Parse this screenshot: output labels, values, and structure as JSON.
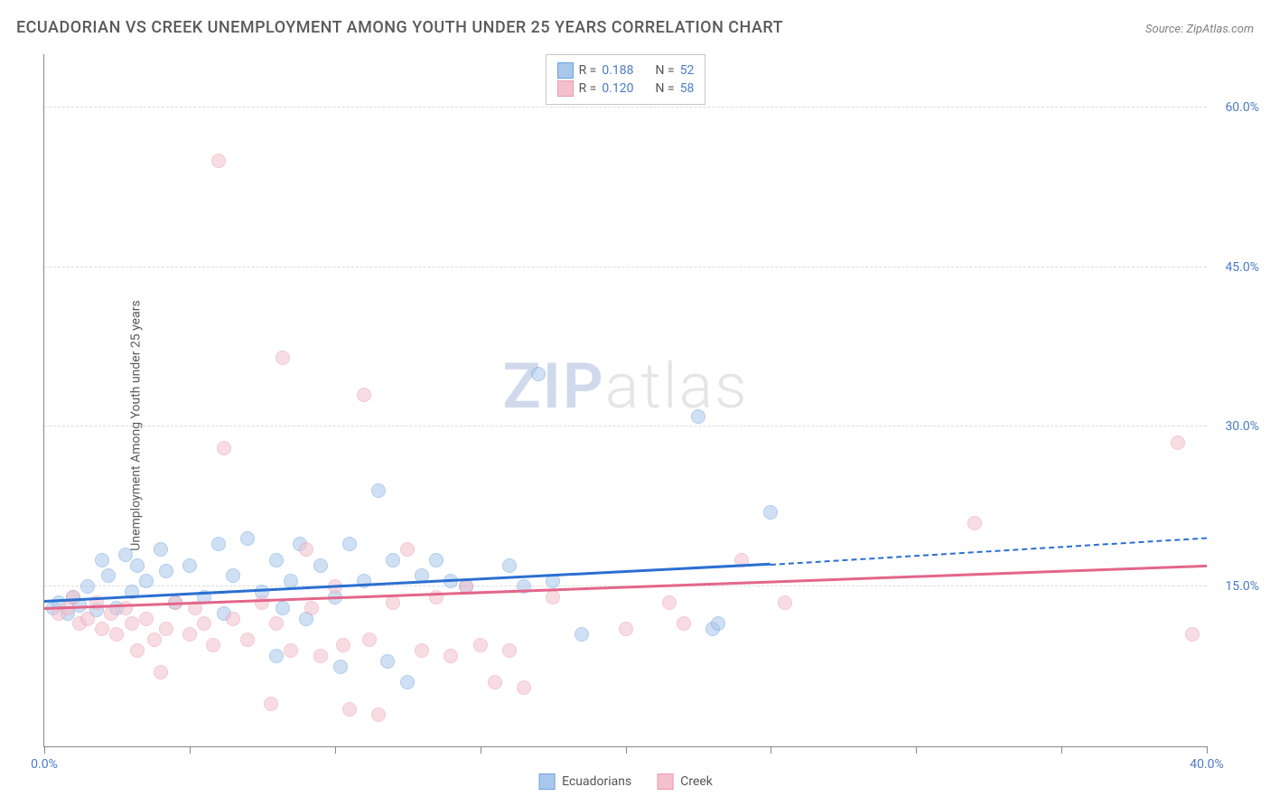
{
  "header": {
    "title": "ECUADORIAN VS CREEK UNEMPLOYMENT AMONG YOUTH UNDER 25 YEARS CORRELATION CHART",
    "source_prefix": "Source: ",
    "source_name": "ZipAtlas.com"
  },
  "yaxis_label": "Unemployment Among Youth under 25 years",
  "watermark": {
    "bold": "ZIP",
    "rest": "atlas"
  },
  "chart": {
    "type": "scatter-with-trend",
    "background_color": "#ffffff",
    "grid_color": "#dcdcdc",
    "axis_color": "#888888",
    "tick_label_color": "#4a7bc8",
    "xlim": [
      0,
      40
    ],
    "ylim": [
      0,
      65
    ],
    "y_gridlines": [
      15,
      30,
      45,
      60
    ],
    "y_tick_labels": [
      "15.0%",
      "30.0%",
      "45.0%",
      "60.0%"
    ],
    "x_ticks": [
      0,
      5,
      10,
      15,
      20,
      25,
      30,
      35,
      40
    ],
    "x_tick_labels": {
      "0": "0.0%",
      "40": "40.0%"
    },
    "point_radius": 8,
    "point_opacity": 0.55,
    "series": [
      {
        "name": "Ecuadorians",
        "color_fill": "#a9c7ec",
        "color_stroke": "#6fa3dd",
        "trend_color": "#2b6fd1",
        "R": "0.188",
        "N": "52",
        "trend": {
          "x1": 0,
          "y1": 13.5,
          "x2_solid": 25,
          "y2_solid": 17.0,
          "x2_dash": 40,
          "y2_dash": 19.5
        },
        "points": [
          [
            0.3,
            13.0
          ],
          [
            0.5,
            13.5
          ],
          [
            0.8,
            12.5
          ],
          [
            1.0,
            14.0
          ],
          [
            1.2,
            13.2
          ],
          [
            1.5,
            15.0
          ],
          [
            1.8,
            12.8
          ],
          [
            2.0,
            17.5
          ],
          [
            2.2,
            16.0
          ],
          [
            2.5,
            13.0
          ],
          [
            2.8,
            18.0
          ],
          [
            3.0,
            14.5
          ],
          [
            3.2,
            17.0
          ],
          [
            3.5,
            15.5
          ],
          [
            4.0,
            18.5
          ],
          [
            4.2,
            16.5
          ],
          [
            4.5,
            13.5
          ],
          [
            5.0,
            17.0
          ],
          [
            5.5,
            14.0
          ],
          [
            6.0,
            19.0
          ],
          [
            6.5,
            16.0
          ],
          [
            7.0,
            19.5
          ],
          [
            7.5,
            14.5
          ],
          [
            8.0,
            17.5
          ],
          [
            8.2,
            13.0
          ],
          [
            8.5,
            15.5
          ],
          [
            8.8,
            19.0
          ],
          [
            9.0,
            12.0
          ],
          [
            9.5,
            17.0
          ],
          [
            10.0,
            14.0
          ],
          [
            10.2,
            7.5
          ],
          [
            10.5,
            19.0
          ],
          [
            11.0,
            15.5
          ],
          [
            11.5,
            24.0
          ],
          [
            11.8,
            8.0
          ],
          [
            12.0,
            17.5
          ],
          [
            12.5,
            6.0
          ],
          [
            13.0,
            16.0
          ],
          [
            13.5,
            17.5
          ],
          [
            14.0,
            15.5
          ],
          [
            14.5,
            15.0
          ],
          [
            16.0,
            17.0
          ],
          [
            16.5,
            15.0
          ],
          [
            17.0,
            35.0
          ],
          [
            18.5,
            10.5
          ],
          [
            22.5,
            31.0
          ],
          [
            23.0,
            11.0
          ],
          [
            23.2,
            11.5
          ],
          [
            25.0,
            22.0
          ],
          [
            17.5,
            15.5
          ],
          [
            8.0,
            8.5
          ],
          [
            6.2,
            12.5
          ]
        ]
      },
      {
        "name": "Creek",
        "color_fill": "#f4c0cd",
        "color_stroke": "#eb9bb1",
        "trend_color": "#e3668a",
        "R": "0.120",
        "N": "58",
        "trend": {
          "x1": 0,
          "y1": 12.8,
          "x2_solid": 40,
          "y2_solid": 16.8,
          "x2_dash": 40,
          "y2_dash": 16.8
        },
        "points": [
          [
            0.5,
            12.5
          ],
          [
            0.8,
            13.0
          ],
          [
            1.0,
            14.0
          ],
          [
            1.2,
            11.5
          ],
          [
            1.5,
            12.0
          ],
          [
            1.8,
            13.5
          ],
          [
            2.0,
            11.0
          ],
          [
            2.3,
            12.5
          ],
          [
            2.5,
            10.5
          ],
          [
            2.8,
            13.0
          ],
          [
            3.0,
            11.5
          ],
          [
            3.2,
            9.0
          ],
          [
            3.5,
            12.0
          ],
          [
            3.8,
            10.0
          ],
          [
            4.0,
            7.0
          ],
          [
            4.2,
            11.0
          ],
          [
            4.5,
            13.5
          ],
          [
            5.0,
            10.5
          ],
          [
            5.2,
            13.0
          ],
          [
            5.5,
            11.5
          ],
          [
            5.8,
            9.5
          ],
          [
            6.0,
            55.0
          ],
          [
            6.2,
            28.0
          ],
          [
            6.5,
            12.0
          ],
          [
            7.0,
            10.0
          ],
          [
            7.5,
            13.5
          ],
          [
            7.8,
            4.0
          ],
          [
            8.0,
            11.5
          ],
          [
            8.2,
            36.5
          ],
          [
            8.5,
            9.0
          ],
          [
            9.0,
            18.5
          ],
          [
            9.2,
            13.0
          ],
          [
            9.5,
            8.5
          ],
          [
            10.0,
            15.0
          ],
          [
            10.3,
            9.5
          ],
          [
            10.5,
            3.5
          ],
          [
            11.0,
            33.0
          ],
          [
            11.2,
            10.0
          ],
          [
            11.5,
            3.0
          ],
          [
            12.0,
            13.5
          ],
          [
            12.5,
            18.5
          ],
          [
            13.0,
            9.0
          ],
          [
            13.5,
            14.0
          ],
          [
            14.0,
            8.5
          ],
          [
            14.5,
            15.0
          ],
          [
            15.0,
            9.5
          ],
          [
            15.5,
            6.0
          ],
          [
            16.0,
            9.0
          ],
          [
            16.5,
            5.5
          ],
          [
            17.5,
            14.0
          ],
          [
            20.0,
            11.0
          ],
          [
            21.5,
            13.5
          ],
          [
            22.0,
            11.5
          ],
          [
            24.0,
            17.5
          ],
          [
            25.5,
            13.5
          ],
          [
            32.0,
            21.0
          ],
          [
            39.0,
            28.5
          ],
          [
            39.5,
            10.5
          ]
        ]
      }
    ],
    "legend_top": {
      "border_color": "#c8c8c8",
      "label_color": "#555555",
      "value_color": "#4a7bc8",
      "r_label": "R =",
      "n_label": "N ="
    },
    "legend_bottom": {
      "items": [
        "Ecuadorians",
        "Creek"
      ]
    }
  }
}
